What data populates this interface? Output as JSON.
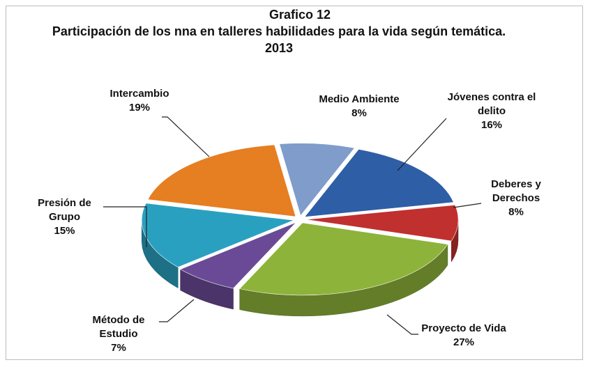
{
  "chart_data": {
    "type": "pie",
    "title": "Grafico 12",
    "subtitle": "Participación de los nna en talleres habilidades para la vida  según temática. 2013",
    "categories": [
      "Medio Ambiente",
      "Jóvenes contra el delito",
      "Deberes y Derechos",
      "Proyecto de Vida",
      "Método de Estudio",
      "Presión de Grupo",
      "Intercambio"
    ],
    "values": [
      8,
      16,
      8,
      27,
      7,
      15,
      19
    ],
    "value_labels": [
      "8%",
      "16%",
      "8%",
      "27%",
      "7%",
      "15%",
      "19%"
    ],
    "colors": [
      "#7f9ccb",
      "#2e5ea6",
      "#c0302f",
      "#8db33a",
      "#6a4a96",
      "#2aa0c0",
      "#e67e22"
    ]
  }
}
